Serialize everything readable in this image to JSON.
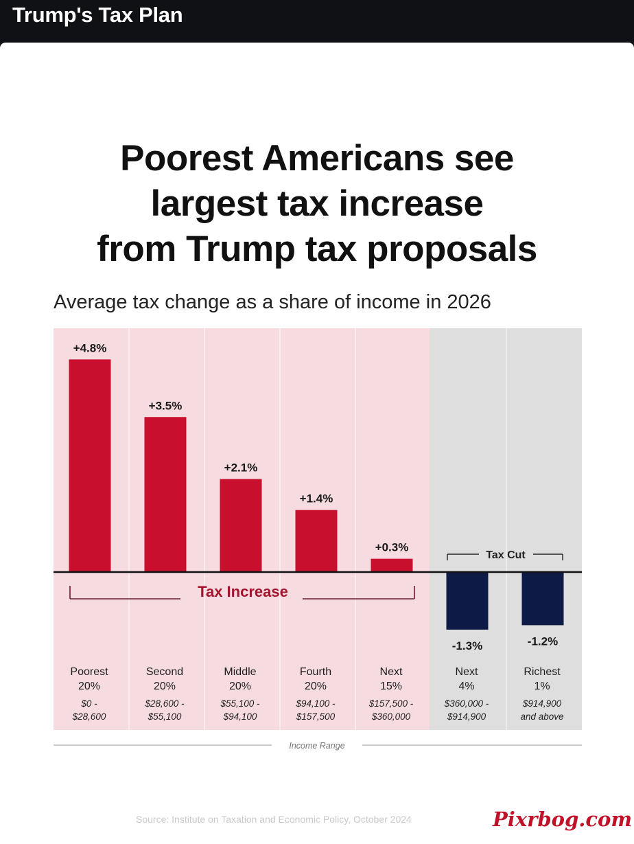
{
  "header": {
    "title": "Trump's Tax Plan"
  },
  "chart_data": {
    "type": "bar",
    "title": "Poorest Americans see largest tax increase from Trump tax proposals",
    "subtitle": "Average tax change as a share of income in 2026",
    "xlabel": "Income Range",
    "ylabel": "",
    "categories": [
      {
        "group": "Poorest 20%",
        "group_lines": [
          "Poorest",
          "20%"
        ],
        "range_lines": [
          "$0 -",
          "$28,600"
        ]
      },
      {
        "group": "Second 20%",
        "group_lines": [
          "Second",
          "20%"
        ],
        "range_lines": [
          "$28,600 -",
          "$55,100"
        ]
      },
      {
        "group": "Middle 20%",
        "group_lines": [
          "Middle",
          "20%"
        ],
        "range_lines": [
          "$55,100 -",
          "$94,100"
        ]
      },
      {
        "group": "Fourth 20%",
        "group_lines": [
          "Fourth",
          "20%"
        ],
        "range_lines": [
          "$94,100 -",
          "$157,500"
        ]
      },
      {
        "group": "Next 15%",
        "group_lines": [
          "Next",
          "15%"
        ],
        "range_lines": [
          "$157,500 -",
          "$360,000"
        ]
      },
      {
        "group": "Next 4%",
        "group_lines": [
          "Next",
          "4%"
        ],
        "range_lines": [
          "$360,000 -",
          "$914,900"
        ]
      },
      {
        "group": "Richest 1%",
        "group_lines": [
          "Richest",
          "1%"
        ],
        "range_lines": [
          "$914,900",
          "and above"
        ]
      }
    ],
    "values": [
      4.8,
      3.5,
      2.1,
      1.4,
      0.3,
      -1.3,
      -1.2
    ],
    "value_labels": [
      "+4.8%",
      "+3.5%",
      "+2.1%",
      "+1.4%",
      "+0.3%",
      "-1.3%",
      "-1.2%"
    ],
    "unit": "%",
    "brackets": {
      "increase_label": "Tax Increase",
      "cut_label": "Tax Cut"
    },
    "colors": {
      "increase_bar": "#c8102e",
      "cut_bar": "#0c1a45",
      "increase_background": "#f6dbe0",
      "cut_background": "#dedede",
      "baseline": "#111111"
    },
    "grid": false,
    "source": "Source: Institute on Taxation and Economic Policy, October 2024"
  },
  "watermark": {
    "text": "Pixrbog.com"
  }
}
